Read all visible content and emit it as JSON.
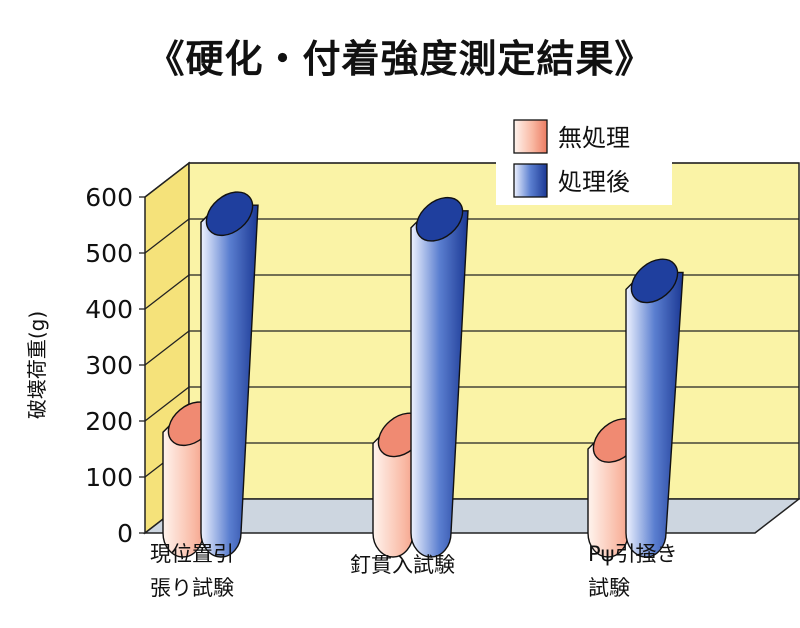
{
  "chart_data": {
    "type": "bar",
    "title": "《硬化・付着強度測定結果》",
    "ylabel": "破壊荷重(g)",
    "xlabel": "",
    "ylim": [
      0,
      600
    ],
    "yticks": [
      "0",
      "100",
      "200",
      "300",
      "400",
      "500",
      "600"
    ],
    "categories": [
      [
        "現位置引",
        "張り試験"
      ],
      [
        "釘貫入試験"
      ],
      [
        "Pψ引掻き",
        "試験"
      ]
    ],
    "series": [
      {
        "name": "無処理",
        "values": [
          180,
          160,
          150
        ]
      },
      {
        "name": "処理後",
        "values": [
          555,
          545,
          435
        ]
      }
    ],
    "legend_position": "top-right",
    "colors": {
      "series1": "#f08a72",
      "series2": "#1f3f9e",
      "back_wall": "#faf3a6",
      "side_wall": "#f5e27a",
      "floor": "#cdd6e0"
    }
  }
}
